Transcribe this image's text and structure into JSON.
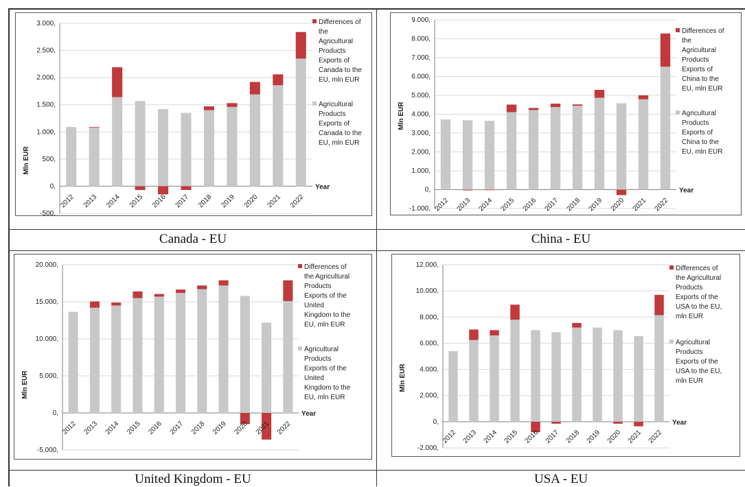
{
  "colors": {
    "base": "#c8c8c8",
    "diff": "#c0393b",
    "grid": "#d9d9d9",
    "axis": "#808080"
  },
  "captions": [
    "Canada - EU",
    "China - EU",
    "United Kingdom - EU",
    "USA - EU"
  ],
  "chart_data": [
    {
      "type": "bar",
      "stacked": true,
      "categories": [
        "2012",
        "2013",
        "2014",
        "2015",
        "2016",
        "2017",
        "2018",
        "2019",
        "2020",
        "2021",
        "2022"
      ],
      "ylabel": "Mln EUR",
      "xlabel": "Year",
      "ylim": [
        -500,
        3000
      ],
      "yticks": [
        -500,
        0,
        500,
        1000,
        1500,
        2000,
        2500,
        3000
      ],
      "yticklabels": [
        "-500,",
        "0,",
        "500,",
        "1.000,",
        "1.500,",
        "2.000,",
        "2.500,",
        "3.000,"
      ],
      "series": [
        {
          "name": "Agricultural Products Exports of Canada to the EU, mln EUR",
          "values": [
            1090,
            1080,
            1640,
            1570,
            1420,
            1350,
            1400,
            1460,
            1690,
            1860,
            2350
          ]
        },
        {
          "name": "Differences of the Agricultural Products Exports of Canada to the EU, mln EUR",
          "values": [
            0,
            10,
            550,
            -70,
            -150,
            -70,
            70,
            70,
            230,
            200,
            490
          ]
        }
      ],
      "legend_position": "right",
      "grid": true
    },
    {
      "type": "bar",
      "stacked": true,
      "categories": [
        "2012",
        "2013",
        "2014",
        "2015",
        "2016",
        "2017",
        "2018",
        "2019",
        "2020",
        "2021",
        "2022"
      ],
      "ylabel": "Mln EUR",
      "xlabel": "Year",
      "ylim": [
        -1000,
        9000
      ],
      "yticks": [
        -1000,
        0,
        1000,
        2000,
        3000,
        4000,
        5000,
        6000,
        7000,
        8000,
        9000
      ],
      "yticklabels": [
        "-1.000,",
        "0,",
        "1.000,",
        "2.000,",
        "3.000,",
        "4.000,",
        "5.000,",
        "6.000,",
        "7.000,",
        "8.000,",
        "9.000,"
      ],
      "series": [
        {
          "name": "Agricultural Products Exports of China to the EU, mln EUR",
          "values": [
            3720,
            3680,
            3650,
            4110,
            4220,
            4380,
            4450,
            4870,
            4580,
            4790,
            6520
          ]
        },
        {
          "name": "Differences of the Agricultural Products Exports of China to the EU, mln EUR",
          "values": [
            0,
            -40,
            -30,
            400,
            110,
            180,
            70,
            420,
            -290,
            210,
            1760
          ]
        }
      ],
      "legend_position": "right",
      "grid": true
    },
    {
      "type": "bar",
      "stacked": true,
      "categories": [
        "2012",
        "2013",
        "2014",
        "2015",
        "2016",
        "2017",
        "2018",
        "2019",
        "2020",
        "2021",
        "2022"
      ],
      "ylabel": "Mln EUR",
      "xlabel": "Year",
      "ylim": [
        -5000,
        20000
      ],
      "yticks": [
        -5000,
        0,
        5000,
        10000,
        15000,
        20000
      ],
      "yticklabels": [
        "-5.000,",
        "0,",
        "5.000,",
        "10.000,",
        "15.000,",
        "20.000,"
      ],
      "series": [
        {
          "name": "Agricultural Products Exports of the United Kingdom to the EU, mln EUR",
          "values": [
            13650,
            14200,
            14500,
            15500,
            15700,
            16200,
            16700,
            17200,
            15800,
            12200,
            15100
          ]
        },
        {
          "name": "Differences of the Agricultural Products Exports of the United Kingdom to the EU, mln EUR",
          "values": [
            0,
            850,
            400,
            900,
            350,
            450,
            500,
            700,
            -1500,
            -3600,
            2800
          ]
        }
      ],
      "legend_position": "right",
      "grid": true
    },
    {
      "type": "bar",
      "stacked": true,
      "categories": [
        "2012",
        "2013",
        "2014",
        "2015",
        "2016",
        "2017",
        "2018",
        "2019",
        "2020",
        "2021",
        "2022"
      ],
      "ylabel": "Mln EUR",
      "xlabel": "Year",
      "ylim": [
        -2000,
        12000
      ],
      "yticks": [
        -2000,
        0,
        2000,
        4000,
        6000,
        8000,
        10000,
        12000
      ],
      "yticklabels": [
        "-2.000,",
        "0,",
        "2.000,",
        "4.000,",
        "6.000,",
        "8.000,",
        "10.000,",
        "12.000,"
      ],
      "series": [
        {
          "name": "Agricultural Products Exports of the USA to the EU, mln EUR",
          "values": [
            5400,
            6250,
            6600,
            7800,
            7000,
            6850,
            7200,
            7200,
            7000,
            6550,
            8150
          ]
        },
        {
          "name": "Differences of the Agricultural Products Exports of the USA to the EU, mln EUR",
          "values": [
            0,
            800,
            400,
            1150,
            -800,
            -150,
            350,
            0,
            -150,
            -350,
            1550
          ]
        }
      ],
      "legend_position": "right",
      "grid": true
    }
  ]
}
